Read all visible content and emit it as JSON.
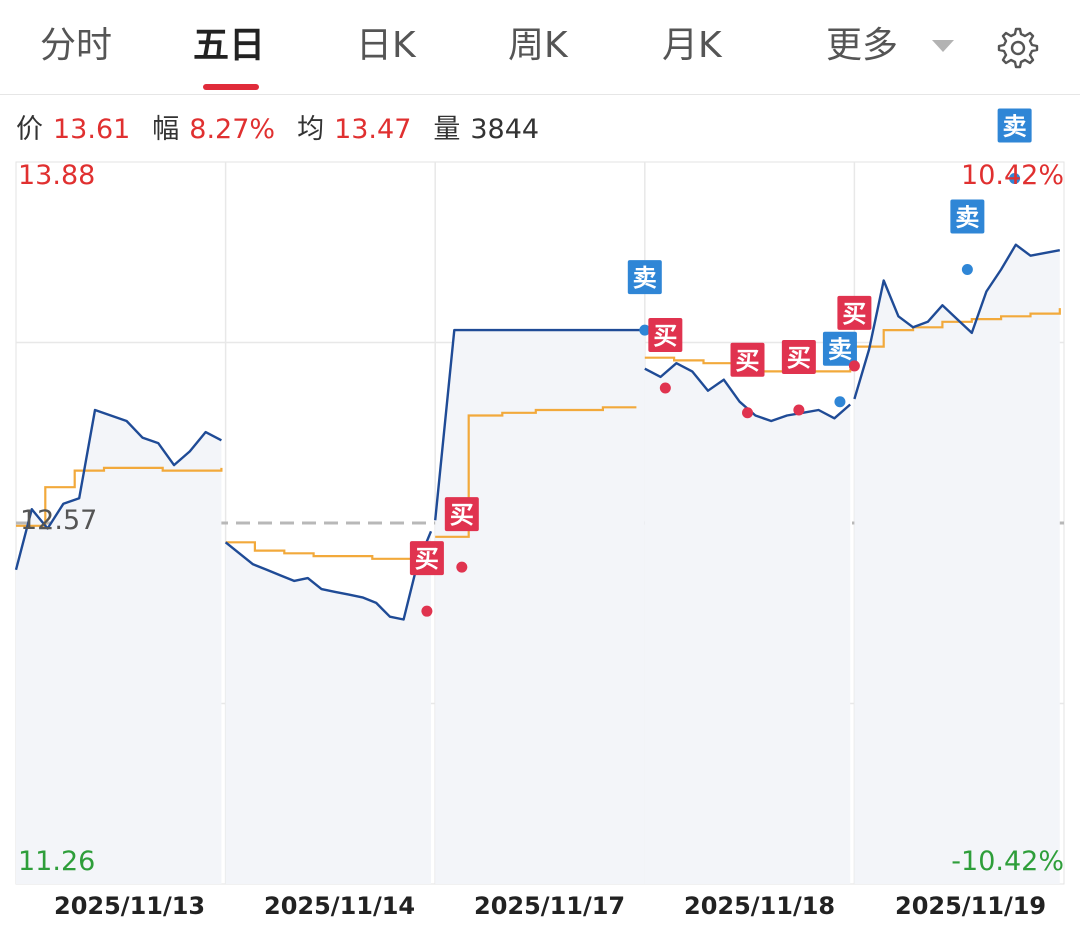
{
  "tabs": [
    {
      "label": "分时"
    },
    {
      "label": "五日"
    },
    {
      "label": "日K"
    },
    {
      "label": "周K"
    },
    {
      "label": "月K"
    },
    {
      "label": "更多"
    }
  ],
  "active_tab": "五日",
  "icons": {
    "more_dropdown": "caret-down-icon",
    "settings": "gear-icon"
  },
  "info": {
    "price_label": "价",
    "price": "13.61",
    "change_label": "幅",
    "change": "8.27%",
    "avg_label": "均",
    "avg": "13.47",
    "volume_label": "量",
    "volume": "3844"
  },
  "axis": {
    "top_price": "13.88",
    "base_price": "12.57",
    "bottom_price": "11.26",
    "top_pct": "10.42%",
    "bottom_pct": "-10.42%"
  },
  "colors": {
    "up": "#e03030",
    "down": "#2e9e3a",
    "price_line": "#1f4b96",
    "avg_line": "#f2a93b",
    "buy": "#e0334f",
    "sell": "#2f86d6"
  },
  "chart_data": {
    "type": "line",
    "days": [
      "2025/11/13",
      "2025/11/14",
      "2025/11/17",
      "2025/11/18",
      "2025/11/19"
    ],
    "ylim": [
      11.26,
      13.88
    ],
    "base": 12.57,
    "series": [
      {
        "values": [
          [
            12.4,
            12.62,
            12.55,
            12.64,
            12.66,
            12.98,
            12.96,
            12.94,
            12.88,
            12.86,
            12.78,
            12.83,
            12.9,
            12.87
          ],
          [
            12.5,
            12.46,
            12.42,
            12.4,
            12.38,
            12.36,
            12.37,
            12.33,
            12.32,
            12.31,
            12.3,
            12.28,
            12.23,
            12.22,
            12.42,
            12.54
          ],
          [
            12.58,
            13.27,
            13.27,
            13.27,
            13.27,
            13.27,
            13.27,
            13.27,
            13.27,
            13.27,
            13.27,
            13.27
          ],
          [
            13.13,
            13.1,
            13.15,
            13.12,
            13.05,
            13.09,
            13.01,
            12.96,
            12.94,
            12.96,
            12.97,
            12.98,
            12.95,
            13.0
          ],
          [
            13.02,
            13.2,
            13.45,
            13.32,
            13.28,
            13.3,
            13.36,
            13.31,
            13.26,
            13.41,
            13.49,
            13.58,
            13.54,
            13.55,
            13.56
          ]
        ]
      },
      {
        "values": [
          [
            12.56,
            12.7,
            12.76,
            12.77,
            12.77,
            12.76,
            12.76,
            12.77
          ],
          [
            12.5,
            12.47,
            12.46,
            12.45,
            12.45,
            12.44,
            12.44,
            12.45
          ],
          [
            12.52,
            12.96,
            12.97,
            12.98,
            12.98,
            12.99,
            12.99
          ],
          [
            13.17,
            13.16,
            13.15,
            13.13,
            13.12,
            13.12,
            13.12,
            13.13
          ],
          [
            13.21,
            13.27,
            13.28,
            13.3,
            13.31,
            13.32,
            13.33,
            13.35
          ]
        ]
      }
    ],
    "trades": [
      {
        "type": "买",
        "day": 1,
        "t": 0.98,
        "price": 12.25
      },
      {
        "type": "买",
        "day": 1,
        "t": 1.15,
        "price": 12.41
      },
      {
        "type": "卖",
        "day": 2,
        "t": 1.0,
        "price": 13.27
      },
      {
        "type": "买",
        "day": 3,
        "t": 0.1,
        "price": 13.06
      },
      {
        "type": "买",
        "day": 3,
        "t": 0.5,
        "price": 12.97
      },
      {
        "type": "买",
        "day": 3,
        "t": 0.75,
        "price": 12.98
      },
      {
        "type": "卖",
        "day": 3,
        "t": 0.95,
        "price": 13.01
      },
      {
        "type": "买",
        "day": 4,
        "t": 0.0,
        "price": 13.14
      },
      {
        "type": "卖",
        "day": 4,
        "t": 0.55,
        "price": 13.49
      },
      {
        "type": "卖",
        "day": 4,
        "t": 0.78,
        "price": 13.82
      }
    ]
  }
}
